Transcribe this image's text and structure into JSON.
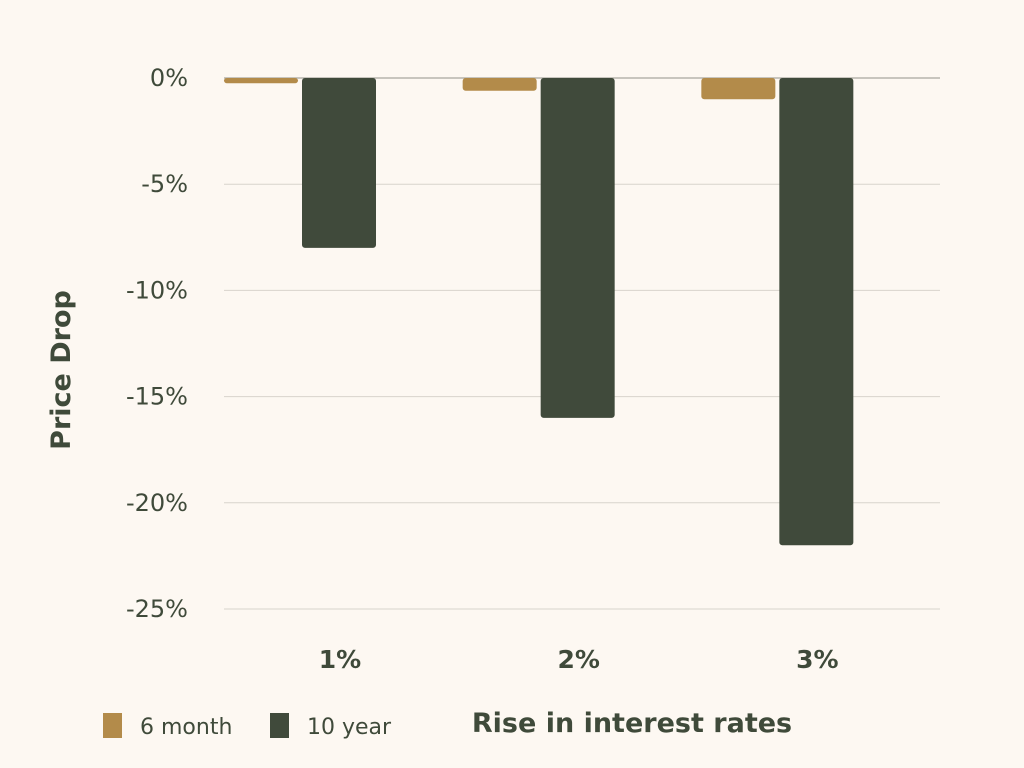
{
  "chart_data": {
    "type": "bar",
    "title": "",
    "xlabel": "Rise in interest rates",
    "ylabel": "Price Drop",
    "categories": [
      "1%",
      "2%",
      "3%"
    ],
    "series": [
      {
        "name": "6 month",
        "values": [
          -0.25,
          -0.6,
          -1.0
        ],
        "color": "#b38b4a"
      },
      {
        "name": "10 year",
        "values": [
          -8,
          -16,
          -22
        ],
        "color": "#404a3b"
      }
    ],
    "ylim": [
      -25,
      0
    ],
    "yticks": [
      0,
      -5,
      -10,
      -15,
      -20,
      -25
    ],
    "ytick_labels": [
      "0%",
      "-5%",
      "-10%",
      "-15%",
      "-20%",
      "-25%"
    ],
    "grid": true,
    "legend_position": "bottom-left"
  },
  "colors": {
    "background": "#fdf8f2",
    "text": "#3f4a3a",
    "grid": "#d8d4cc"
  }
}
